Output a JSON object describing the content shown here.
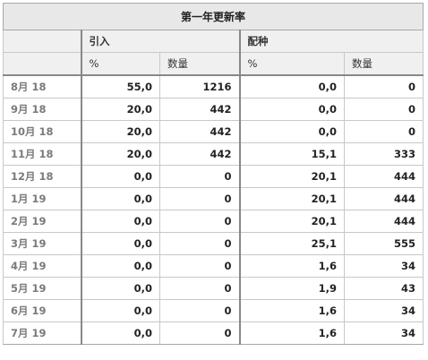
{
  "title": "第一年更新率",
  "groups": {
    "blank": "",
    "g1": "引入",
    "g2": "配种"
  },
  "sub_headers": {
    "blank": "",
    "pct1": "%",
    "qty1": "数量",
    "pct2": "%",
    "qty2": "数量"
  },
  "rows": [
    {
      "label": "8月 18",
      "pct1": "55,0",
      "qty1": "1216",
      "pct2": "0,0",
      "qty2": "0"
    },
    {
      "label": "9月 18",
      "pct1": "20,0",
      "qty1": "442",
      "pct2": "0,0",
      "qty2": "0"
    },
    {
      "label": "10月 18",
      "pct1": "20,0",
      "qty1": "442",
      "pct2": "0,0",
      "qty2": "0"
    },
    {
      "label": "11月 18",
      "pct1": "20,0",
      "qty1": "442",
      "pct2": "15,1",
      "qty2": "333"
    },
    {
      "label": "12月 18",
      "pct1": "0,0",
      "qty1": "0",
      "pct2": "20,1",
      "qty2": "444"
    },
    {
      "label": "1月 19",
      "pct1": "0,0",
      "qty1": "0",
      "pct2": "20,1",
      "qty2": "444"
    },
    {
      "label": "2月 19",
      "pct1": "0,0",
      "qty1": "0",
      "pct2": "20,1",
      "qty2": "444"
    },
    {
      "label": "3月 19",
      "pct1": "0,0",
      "qty1": "0",
      "pct2": "25,1",
      "qty2": "555"
    },
    {
      "label": "4月 19",
      "pct1": "0,0",
      "qty1": "0",
      "pct2": "1,6",
      "qty2": "34"
    },
    {
      "label": "5月 19",
      "pct1": "0,0",
      "qty1": "0",
      "pct2": "1,9",
      "qty2": "43"
    },
    {
      "label": "6月 19",
      "pct1": "0,0",
      "qty1": "0",
      "pct2": "1,6",
      "qty2": "34"
    },
    {
      "label": "7月 19",
      "pct1": "0,0",
      "qty1": "0",
      "pct2": "1,6",
      "qty2": "34"
    }
  ]
}
